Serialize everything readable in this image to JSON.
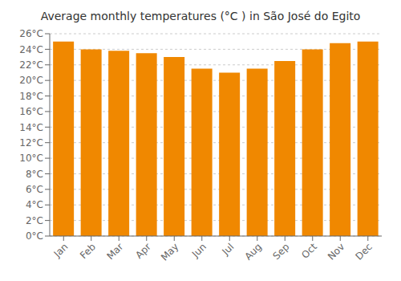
{
  "chart_data": {
    "type": "bar",
    "title": "Average monthly temperatures (°C ) in São José do Egito",
    "categories": [
      "Jan",
      "Feb",
      "Mar",
      "Apr",
      "May",
      "Jun",
      "Jul",
      "Aug",
      "Sep",
      "Oct",
      "Nov",
      "Dec"
    ],
    "values": [
      25.0,
      24.0,
      23.8,
      23.5,
      23.0,
      21.5,
      21.0,
      21.5,
      22.5,
      24.0,
      24.8,
      25.0
    ],
    "color": "#F08800",
    "ylim": [
      0,
      26
    ],
    "yticks": [
      {
        "value": 0,
        "label": "0°C"
      },
      {
        "value": 2,
        "label": "2°C"
      },
      {
        "value": 4,
        "label": "4°C"
      },
      {
        "value": 6,
        "label": "6°C"
      },
      {
        "value": 8,
        "label": "8°C"
      },
      {
        "value": 10,
        "label": "10°C"
      },
      {
        "value": 12,
        "label": "12°C"
      },
      {
        "value": 14,
        "label": "14°C"
      },
      {
        "value": 16,
        "label": "16°C"
      },
      {
        "value": 18,
        "label": "18°C"
      },
      {
        "value": 20,
        "label": "20°C"
      },
      {
        "value": 22,
        "label": "22°C"
      },
      {
        "value": 24,
        "label": "24°C"
      },
      {
        "value": 26,
        "label": "26°C"
      }
    ],
    "grid": true
  }
}
